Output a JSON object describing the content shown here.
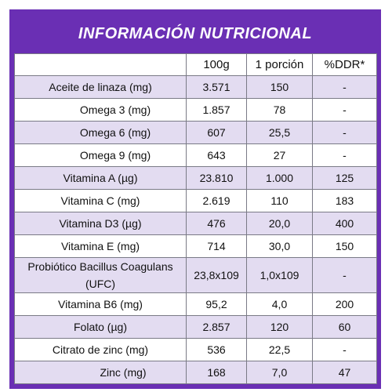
{
  "title": "INFORMACIÓN NUTRICIONAL",
  "columns": [
    "",
    "100g",
    "1 porción",
    "%DDR*"
  ],
  "rows": [
    {
      "label": "Aceite de linaza (mg)",
      "v100": "3.571",
      "portion": "150",
      "ddr": "-"
    },
    {
      "label": "Omega 3 (mg)",
      "v100": "1.857",
      "portion": "78",
      "ddr": "-"
    },
    {
      "label": "Omega 6 (mg)",
      "v100": "607",
      "portion": "25,5",
      "ddr": "-"
    },
    {
      "label": "Omega 9 (mg)",
      "v100": "643",
      "portion": "27",
      "ddr": "-"
    },
    {
      "label": "Vitamina A (µg)",
      "v100": "23.810",
      "portion": "1.000",
      "ddr": "125"
    },
    {
      "label": "Vitamina C (mg)",
      "v100": "2.619",
      "portion": "110",
      "ddr": "183"
    },
    {
      "label": "Vitamina D3 (µg)",
      "v100": "476",
      "portion": "20,0",
      "ddr": "400"
    },
    {
      "label": "Vitamina E (mg)",
      "v100": "714",
      "portion": "30,0",
      "ddr": "150"
    },
    {
      "label": "Probiótico Bacillus Coagulans (UFC)",
      "v100": "23,8x109",
      "portion": "1,0x109",
      "ddr": "-"
    },
    {
      "label": "Vitamina B6 (mg)",
      "v100": "95,2",
      "portion": "4,0",
      "ddr": "200"
    },
    {
      "label": "Folato (µg)",
      "v100": "2.857",
      "portion": "120",
      "ddr": "60"
    },
    {
      "label": "Citrato de zinc (mg)",
      "v100": "536",
      "portion": "22,5",
      "ddr": "-"
    },
    {
      "label": "Zinc (mg)",
      "v100": "168",
      "portion": "7,0",
      "ddr": "47"
    }
  ],
  "colors": {
    "frame": "#6a2fb4",
    "shade": "#e3dcf1"
  }
}
